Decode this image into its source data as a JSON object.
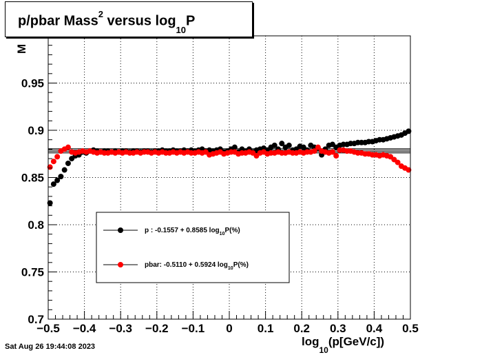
{
  "timestamp": "Sat Aug 26 19:44:08 2023",
  "chart_data": {
    "type": "scatter",
    "title_parts": [
      "p/pbar Mass",
      "2",
      " versus log",
      "10",
      "P"
    ],
    "xlabel_parts": [
      "log",
      "10",
      "(p[GeV/c])"
    ],
    "ylabel": "M",
    "xlim": [
      -0.5,
      0.5
    ],
    "ylim": [
      0.7,
      1.0
    ],
    "x_ticks": [
      "−0.5",
      "−0.4",
      "−0.3",
      "−0.2",
      "−0.1",
      "0",
      "0.1",
      "0.2",
      "0.3",
      "0.4",
      "0.5"
    ],
    "y_ticks": [
      "0.7",
      "0.75",
      "0.8",
      "0.85",
      "0.9",
      "0.95"
    ],
    "grid": true,
    "fit_lines_y": [
      0.876,
      0.8775,
      0.879,
      0.8805
    ],
    "series": [
      {
        "name": "p",
        "color": "#000000",
        "legend_text": "p   : -0.1557 + 0.8585 log",
        "legend_sub": "10",
        "legend_tail": "P(%)",
        "x": [
          -0.495,
          -0.485,
          -0.475,
          -0.465,
          -0.455,
          -0.445,
          -0.435,
          -0.425,
          -0.415,
          -0.405,
          -0.395,
          -0.385,
          -0.375,
          -0.365,
          -0.355,
          -0.345,
          -0.335,
          -0.325,
          -0.315,
          -0.305,
          -0.295,
          -0.285,
          -0.275,
          -0.265,
          -0.255,
          -0.245,
          -0.235,
          -0.225,
          -0.215,
          -0.205,
          -0.195,
          -0.185,
          -0.175,
          -0.165,
          -0.155,
          -0.145,
          -0.135,
          -0.125,
          -0.115,
          -0.105,
          -0.095,
          -0.085,
          -0.075,
          -0.065,
          -0.055,
          -0.045,
          -0.035,
          -0.025,
          -0.015,
          -0.005,
          0.005,
          0.015,
          0.025,
          0.035,
          0.045,
          0.055,
          0.065,
          0.075,
          0.085,
          0.095,
          0.105,
          0.115,
          0.125,
          0.135,
          0.145,
          0.155,
          0.165,
          0.175,
          0.185,
          0.195,
          0.205,
          0.215,
          0.225,
          0.235,
          0.245,
          0.255,
          0.265,
          0.275,
          0.285,
          0.295,
          0.305,
          0.315,
          0.325,
          0.335,
          0.345,
          0.355,
          0.365,
          0.375,
          0.385,
          0.395,
          0.405,
          0.415,
          0.425,
          0.435,
          0.445,
          0.455,
          0.465,
          0.475,
          0.485,
          0.495
        ],
        "y": [
          0.823,
          0.843,
          0.847,
          0.851,
          0.858,
          0.865,
          0.87,
          0.873,
          0.874,
          0.877,
          0.876,
          0.878,
          0.879,
          0.878,
          0.877,
          0.878,
          0.878,
          0.877,
          0.878,
          0.877,
          0.878,
          0.878,
          0.877,
          0.878,
          0.878,
          0.877,
          0.878,
          0.878,
          0.877,
          0.878,
          0.878,
          0.879,
          0.878,
          0.878,
          0.879,
          0.878,
          0.878,
          0.879,
          0.878,
          0.879,
          0.878,
          0.879,
          0.88,
          0.878,
          0.879,
          0.878,
          0.879,
          0.88,
          0.877,
          0.878,
          0.88,
          0.882,
          0.877,
          0.88,
          0.878,
          0.88,
          0.877,
          0.879,
          0.88,
          0.881,
          0.879,
          0.882,
          0.884,
          0.88,
          0.886,
          0.882,
          0.884,
          0.879,
          0.88,
          0.883,
          0.882,
          0.879,
          0.884,
          0.882,
          0.881,
          0.874,
          0.88,
          0.884,
          0.885,
          0.882,
          0.884,
          0.885,
          0.885,
          0.886,
          0.886,
          0.887,
          0.887,
          0.887,
          0.888,
          0.888,
          0.889,
          0.89,
          0.89,
          0.891,
          0.892,
          0.893,
          0.894,
          0.895,
          0.897,
          0.899
        ]
      },
      {
        "name": "pbar",
        "color": "#ff0000",
        "legend_text": "pbar: -0.5110 + 0.5924 log",
        "legend_sub": "10",
        "legend_tail": "P(%)",
        "x": [
          -0.495,
          -0.485,
          -0.475,
          -0.465,
          -0.455,
          -0.445,
          -0.435,
          -0.425,
          -0.415,
          -0.405,
          -0.395,
          -0.385,
          -0.375,
          -0.365,
          -0.355,
          -0.345,
          -0.335,
          -0.325,
          -0.315,
          -0.305,
          -0.295,
          -0.285,
          -0.275,
          -0.265,
          -0.255,
          -0.245,
          -0.235,
          -0.225,
          -0.215,
          -0.205,
          -0.195,
          -0.185,
          -0.175,
          -0.165,
          -0.155,
          -0.145,
          -0.135,
          -0.125,
          -0.115,
          -0.105,
          -0.095,
          -0.085,
          -0.075,
          -0.065,
          -0.055,
          -0.045,
          -0.035,
          -0.025,
          -0.015,
          -0.005,
          0.005,
          0.015,
          0.025,
          0.035,
          0.045,
          0.055,
          0.065,
          0.075,
          0.085,
          0.095,
          0.105,
          0.115,
          0.125,
          0.135,
          0.145,
          0.155,
          0.165,
          0.175,
          0.185,
          0.195,
          0.205,
          0.215,
          0.225,
          0.235,
          0.245,
          0.255,
          0.265,
          0.275,
          0.285,
          0.295,
          0.305,
          0.315,
          0.325,
          0.335,
          0.345,
          0.355,
          0.365,
          0.375,
          0.385,
          0.395,
          0.405,
          0.415,
          0.425,
          0.435,
          0.445,
          0.455,
          0.465,
          0.475,
          0.485,
          0.495
        ],
        "y": [
          0.861,
          0.867,
          0.872,
          0.878,
          0.88,
          0.882,
          0.877,
          0.876,
          0.877,
          0.878,
          0.877,
          0.878,
          0.877,
          0.876,
          0.877,
          0.876,
          0.876,
          0.877,
          0.876,
          0.877,
          0.876,
          0.877,
          0.876,
          0.876,
          0.877,
          0.876,
          0.877,
          0.877,
          0.876,
          0.877,
          0.876,
          0.877,
          0.876,
          0.876,
          0.877,
          0.876,
          0.877,
          0.876,
          0.877,
          0.876,
          0.876,
          0.877,
          0.876,
          0.877,
          0.874,
          0.875,
          0.876,
          0.877,
          0.875,
          0.876,
          0.877,
          0.877,
          0.875,
          0.876,
          0.876,
          0.877,
          0.876,
          0.873,
          0.876,
          0.877,
          0.875,
          0.876,
          0.876,
          0.877,
          0.876,
          0.876,
          0.877,
          0.876,
          0.876,
          0.877,
          0.876,
          0.877,
          0.877,
          0.878,
          0.882,
          0.878,
          0.877,
          0.876,
          0.877,
          0.873,
          0.879,
          0.879,
          0.878,
          0.878,
          0.877,
          0.876,
          0.876,
          0.875,
          0.875,
          0.874,
          0.874,
          0.873,
          0.874,
          0.873,
          0.872,
          0.869,
          0.866,
          0.862,
          0.86,
          0.858
        ]
      }
    ]
  }
}
